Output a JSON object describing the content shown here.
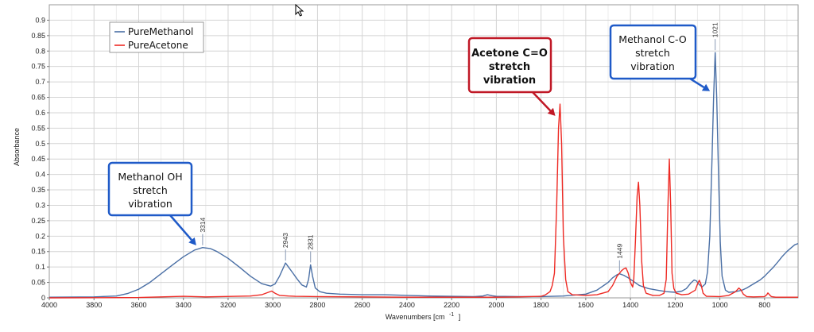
{
  "chart_data": {
    "type": "line",
    "xlabel": "Wavenumbers [cm",
    "xlabel_sup": "-1",
    "xlabel_close": "]",
    "ylabel": "Absorbance",
    "xlim": [
      4000,
      650
    ],
    "x_reversed": true,
    "ylim": [
      0,
      0.95
    ],
    "x_ticks": [
      4000,
      3800,
      3600,
      3400,
      3200,
      3000,
      2800,
      2600,
      2400,
      2200,
      2000,
      1800,
      1600,
      1400,
      1200,
      1000,
      800
    ],
    "x_tick_labels": [
      "4000",
      "3800",
      "3600",
      "3400",
      "3200",
      "3000",
      "2800",
      "2600",
      "2400",
      "2200",
      "2000",
      "1800",
      "1600",
      "1400",
      "1200",
      "1000",
      "800"
    ],
    "y_ticks": [
      0,
      0.05,
      0.1,
      0.15,
      0.2,
      0.25,
      0.3,
      0.35,
      0.4,
      0.45,
      0.5,
      0.55,
      0.6,
      0.65,
      0.7,
      0.75,
      0.8,
      0.85,
      0.9
    ],
    "y_tick_labels": [
      "0",
      "0.05",
      "0.1",
      "0.15",
      "0.2",
      "0.25",
      "0.3",
      "0.35",
      "0.4",
      "0.45",
      "0.5",
      "0.55",
      "0.6",
      "0.65",
      "0.7",
      "0.75",
      "0.8",
      "0.85",
      "0.9"
    ],
    "grid": true,
    "legend_position": "top-left",
    "series": [
      {
        "name": "PureMethanol",
        "color": "#4a6fa5",
        "x": [
          4000,
          3800,
          3700,
          3650,
          3600,
          3550,
          3500,
          3450,
          3400,
          3350,
          3314,
          3280,
          3250,
          3200,
          3150,
          3100,
          3050,
          3010,
          2990,
          2970,
          2955,
          2943,
          2930,
          2910,
          2890,
          2870,
          2850,
          2840,
          2831,
          2822,
          2810,
          2790,
          2760,
          2700,
          2600,
          2500,
          2400,
          2300,
          2200,
          2100,
          2060,
          2040,
          2020,
          2000,
          1900,
          1800,
          1700,
          1600,
          1550,
          1500,
          1480,
          1460,
          1449,
          1430,
          1410,
          1390,
          1380,
          1360,
          1320,
          1280,
          1240,
          1200,
          1170,
          1150,
          1130,
          1115,
          1105,
          1095,
          1080,
          1065,
          1055,
          1045,
          1035,
          1028,
          1021,
          1014,
          1006,
          998,
          990,
          975,
          960,
          930,
          900,
          880,
          850,
          820,
          800,
          780,
          760,
          740,
          720,
          700,
          680,
          665,
          650
        ],
        "y": [
          0.002,
          0.003,
          0.006,
          0.014,
          0.028,
          0.05,
          0.078,
          0.106,
          0.133,
          0.155,
          0.163,
          0.16,
          0.15,
          0.128,
          0.1,
          0.07,
          0.046,
          0.038,
          0.045,
          0.07,
          0.094,
          0.113,
          0.1,
          0.08,
          0.06,
          0.042,
          0.035,
          0.06,
          0.107,
          0.07,
          0.032,
          0.02,
          0.015,
          0.012,
          0.01,
          0.01,
          0.008,
          0.006,
          0.005,
          0.004,
          0.006,
          0.01,
          0.007,
          0.005,
          0.004,
          0.004,
          0.006,
          0.012,
          0.025,
          0.05,
          0.065,
          0.075,
          0.078,
          0.073,
          0.065,
          0.055,
          0.05,
          0.04,
          0.03,
          0.025,
          0.02,
          0.018,
          0.022,
          0.03,
          0.048,
          0.058,
          0.055,
          0.045,
          0.035,
          0.045,
          0.085,
          0.2,
          0.45,
          0.65,
          0.795,
          0.65,
          0.4,
          0.18,
          0.07,
          0.025,
          0.018,
          0.02,
          0.025,
          0.032,
          0.045,
          0.058,
          0.07,
          0.085,
          0.1,
          0.117,
          0.135,
          0.15,
          0.163,
          0.172,
          0.176
        ]
      },
      {
        "name": "PureAcetone",
        "color": "#ee2a24",
        "x": [
          4000,
          3600,
          3500,
          3450,
          3400,
          3350,
          3300,
          3100,
          3050,
          3020,
          3005,
          2990,
          2970,
          2930,
          2900,
          2800,
          2600,
          2400,
          2200,
          2000,
          1900,
          1800,
          1780,
          1760,
          1750,
          1740,
          1730,
          1722,
          1715,
          1708,
          1700,
          1690,
          1680,
          1660,
          1600,
          1550,
          1500,
          1480,
          1460,
          1440,
          1430,
          1420,
          1410,
          1400,
          1390,
          1385,
          1378,
          1370,
          1364,
          1358,
          1350,
          1342,
          1330,
          1300,
          1270,
          1250,
          1240,
          1232,
          1226,
          1220,
          1214,
          1206,
          1195,
          1170,
          1140,
          1110,
          1100,
          1092,
          1085,
          1075,
          1060,
          1000,
          960,
          930,
          915,
          905,
          895,
          880,
          850,
          800,
          790,
          785,
          778,
          770,
          750,
          700,
          650
        ],
        "y": [
          0.0,
          0.001,
          0.003,
          0.004,
          0.005,
          0.004,
          0.003,
          0.006,
          0.01,
          0.018,
          0.022,
          0.015,
          0.008,
          0.006,
          0.005,
          0.004,
          0.003,
          0.002,
          0.002,
          0.002,
          0.003,
          0.005,
          0.01,
          0.02,
          0.04,
          0.08,
          0.3,
          0.55,
          0.628,
          0.5,
          0.2,
          0.06,
          0.02,
          0.01,
          0.008,
          0.01,
          0.02,
          0.04,
          0.07,
          0.088,
          0.094,
          0.097,
          0.08,
          0.05,
          0.035,
          0.06,
          0.18,
          0.33,
          0.375,
          0.3,
          0.12,
          0.04,
          0.015,
          0.008,
          0.008,
          0.015,
          0.06,
          0.3,
          0.45,
          0.3,
          0.08,
          0.03,
          0.015,
          0.01,
          0.012,
          0.025,
          0.045,
          0.057,
          0.045,
          0.015,
          0.005,
          0.004,
          0.008,
          0.02,
          0.032,
          0.025,
          0.012,
          0.004,
          0.003,
          0.004,
          0.01,
          0.016,
          0.01,
          0.004,
          0.002,
          0.002,
          0.002
        ]
      }
    ],
    "peak_labels": [
      {
        "x": 3314,
        "text": "3314",
        "series": 0,
        "tip": 0.163
      },
      {
        "x": 2943,
        "text": "2943",
        "series": 0,
        "tip": 0.113
      },
      {
        "x": 2831,
        "text": "2831",
        "series": 0,
        "tip": 0.107
      },
      {
        "x": 1449,
        "text": "1449",
        "series": 0,
        "tip": 0.078
      },
      {
        "x": 1021,
        "text": "1021",
        "series": 0,
        "tip": 0.795
      }
    ],
    "annotations": [
      {
        "lines": [
          "Methanol OH",
          "stretch",
          "vibration"
        ],
        "border_color": "#1f5ac8",
        "bold": false,
        "arrow_to": {
          "x": 3314,
          "y": 0.165
        }
      },
      {
        "lines": [
          "Acetone C=O",
          "stretch",
          "vibration"
        ],
        "border_color": "#c01826",
        "bold": true,
        "arrow_to": {
          "x": 1722,
          "y": 0.59
        }
      },
      {
        "lines": [
          "Methanol C-O",
          "stretch",
          "vibration"
        ],
        "border_color": "#1f5ac8",
        "bold": false,
        "arrow_to": {
          "x": 1030,
          "y": 0.67
        }
      }
    ]
  }
}
